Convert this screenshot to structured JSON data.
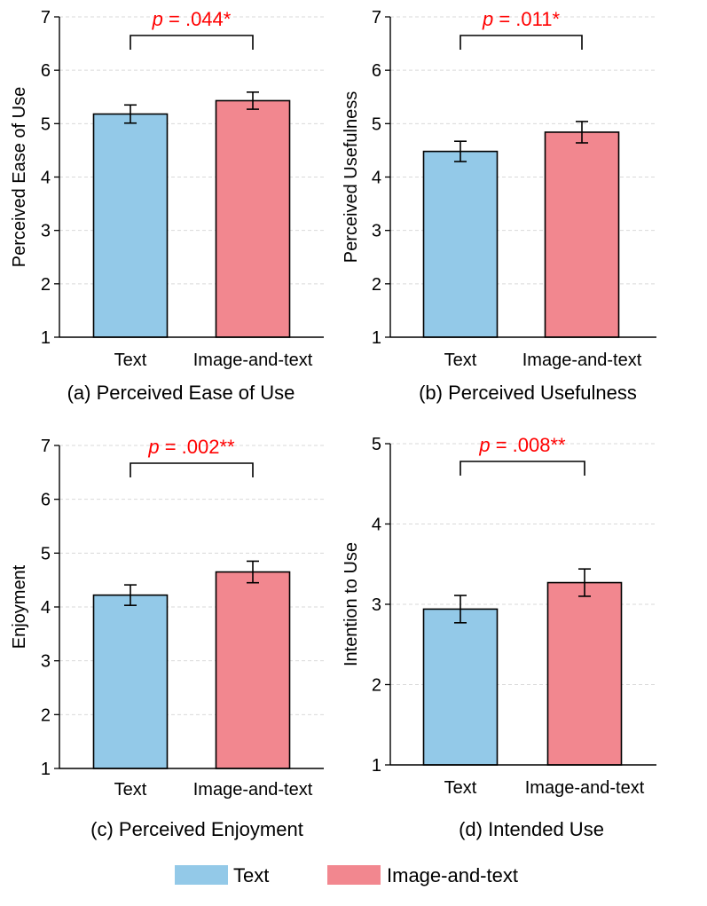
{
  "colors": {
    "text": "#93C9E8",
    "image_and_text": "#F2878F",
    "significance": "#FF0000",
    "grid": "#D9D9D9"
  },
  "legend": {
    "items": [
      {
        "label": "Text",
        "color": "#93C9E8"
      },
      {
        "label": "Image-and-text",
        "color": "#F2878F"
      }
    ]
  },
  "chart_data": [
    {
      "type": "bar",
      "ylabel": "Perceived Ease of Use",
      "caption": "(a) Perceived Ease of Use",
      "categories": [
        "Text",
        "Image-and-text"
      ],
      "values": [
        5.18,
        5.43
      ],
      "errors": [
        0.17,
        0.16
      ],
      "ylim": [
        1,
        7
      ],
      "yticks": [
        "1",
        "2",
        "3",
        "4",
        "5",
        "6",
        "7"
      ],
      "significance": {
        "prefix": "p",
        "text": " = .044*"
      }
    },
    {
      "type": "bar",
      "ylabel": "Perceived Usefulness",
      "caption": "(b) Perceived Usefulness",
      "categories": [
        "Text",
        "Image-and-text"
      ],
      "values": [
        4.48,
        4.84
      ],
      "errors": [
        0.19,
        0.2
      ],
      "ylim": [
        1,
        7
      ],
      "yticks": [
        "1",
        "2",
        "3",
        "4",
        "5",
        "6",
        "7"
      ],
      "significance": {
        "prefix": "p",
        "text": " = .011*"
      }
    },
    {
      "type": "bar",
      "ylabel": "Enjoyment",
      "caption": "(c) Perceived Enjoyment",
      "categories": [
        "Text",
        "Image-and-text"
      ],
      "values": [
        4.22,
        4.65
      ],
      "errors": [
        0.19,
        0.2
      ],
      "ylim": [
        1,
        7
      ],
      "yticks": [
        "1",
        "2",
        "3",
        "4",
        "5",
        "6",
        "7"
      ],
      "significance": {
        "prefix": "p",
        "text": " = .002**"
      }
    },
    {
      "type": "bar",
      "ylabel": "Intention to Use",
      "caption": "(d) Intended Use",
      "categories": [
        "Text",
        "Image-and-text"
      ],
      "values": [
        2.94,
        3.27
      ],
      "errors": [
        0.17,
        0.17
      ],
      "ylim": [
        1,
        5
      ],
      "yticks": [
        "1",
        "2",
        "3",
        "4",
        "5"
      ],
      "significance": {
        "prefix": "p",
        "text": " = .008**"
      }
    }
  ]
}
